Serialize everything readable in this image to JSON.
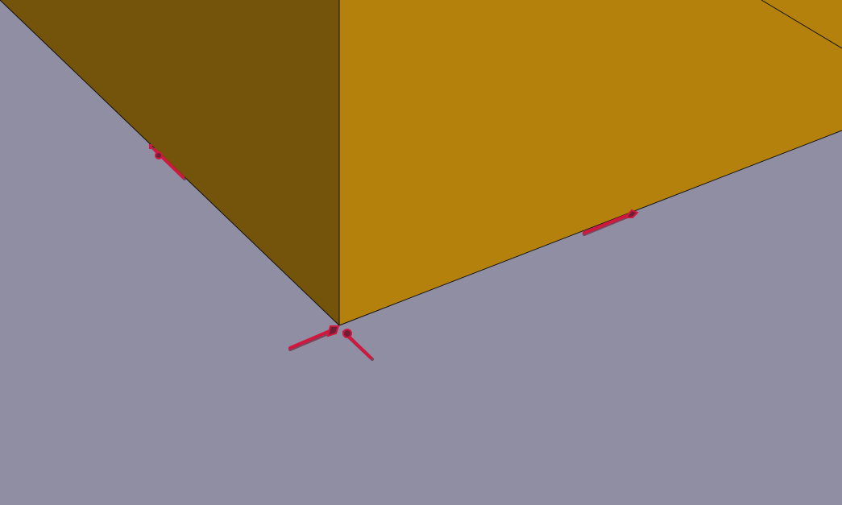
{
  "scene": {
    "background_color": "#8f8ea3",
    "object": {
      "name": "box",
      "left_face_color": "#74530a",
      "right_face_color": "#b4820c",
      "edge_color": "#111111"
    },
    "annotation": {
      "color": "#d0183f",
      "shadow_color": "#6e1f35",
      "arrow_count": 4
    }
  }
}
